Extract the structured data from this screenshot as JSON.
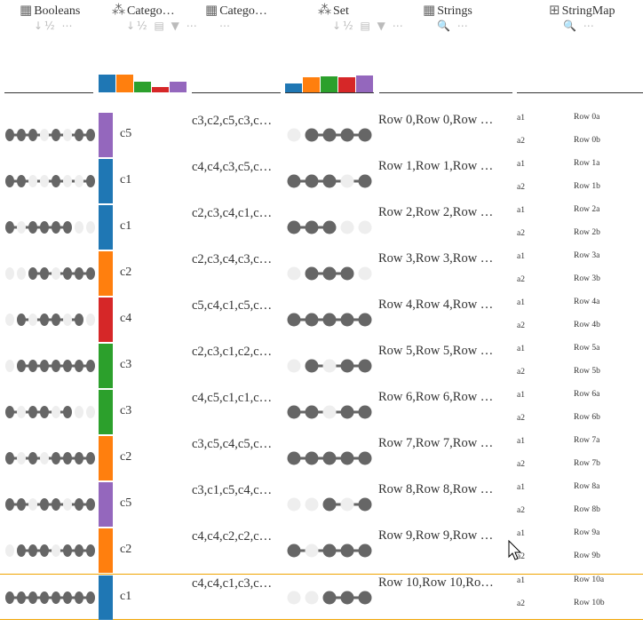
{
  "columns": [
    {
      "title": "Booleans",
      "icon": "grid-icon",
      "tools": "↓½ ⋯"
    },
    {
      "title": "Catego…",
      "icon": "category-icon",
      "tools": "↓½ ▤ ▼ ⋯"
    },
    {
      "title": "Catego…",
      "icon": "grid-icon",
      "tools": "⋯"
    },
    {
      "title": "Set",
      "icon": "category-icon",
      "tools": "↓½ ▤ ▼ ⋯"
    },
    {
      "title": "Strings",
      "icon": "grid-icon",
      "tools": "🔍 ⋯"
    },
    {
      "title": "StringMap",
      "icon": "map-icon",
      "tools": "🔍 ⋯"
    }
  ],
  "colors": {
    "c1": "#1f77b4",
    "c2": "#ff7f0e",
    "c3": "#2ca02c",
    "c4": "#d62728",
    "c5": "#9467bd",
    "dot": "#666666",
    "empty": "#eeeeee",
    "selected": "#f0a400"
  },
  "histogram": [
    {
      "cat": "c1",
      "value": 20
    },
    {
      "cat": "c2",
      "value": 20
    },
    {
      "cat": "c3",
      "value": 12
    },
    {
      "cat": "c4",
      "value": 6
    },
    {
      "cat": "c5",
      "value": 12
    }
  ],
  "set_histogram": [
    {
      "cat": "c1",
      "value": 10
    },
    {
      "cat": "c2",
      "value": 17
    },
    {
      "cat": "c3",
      "value": 18
    },
    {
      "cat": "c4",
      "value": 17
    },
    {
      "cat": "c5",
      "value": 19
    }
  ],
  "rows": [
    {
      "bools": [
        1,
        1,
        1,
        0,
        1,
        0,
        1,
        1
      ],
      "cat": "c5",
      "cats": "c3,c2,c5,c3,c…",
      "set": [
        0,
        1,
        1,
        1,
        1
      ],
      "str": "Row 0,Row 0,Row …",
      "map": [
        {
          "k": "a1",
          "v": "Row 0a"
        },
        {
          "k": "a2",
          "v": "Row 0b"
        }
      ]
    },
    {
      "bools": [
        1,
        1,
        0,
        0,
        1,
        0,
        0,
        1
      ],
      "cat": "c1",
      "cats": "c4,c4,c3,c5,c…",
      "set": [
        1,
        1,
        1,
        0,
        1
      ],
      "str": "Row 1,Row 1,Row …",
      "map": [
        {
          "k": "a1",
          "v": "Row 1a"
        },
        {
          "k": "a2",
          "v": "Row 1b"
        }
      ]
    },
    {
      "bools": [
        1,
        0,
        1,
        1,
        1,
        1,
        0,
        0
      ],
      "cat": "c1",
      "cats": "c2,c3,c4,c1,c…",
      "set": [
        1,
        1,
        1,
        0,
        0
      ],
      "str": "Row 2,Row 2,Row …",
      "map": [
        {
          "k": "a1",
          "v": "Row 2a"
        },
        {
          "k": "a2",
          "v": "Row 2b"
        }
      ]
    },
    {
      "bools": [
        0,
        0,
        1,
        1,
        0,
        1,
        1,
        1
      ],
      "cat": "c2",
      "cats": "c2,c3,c4,c3,c…",
      "set": [
        0,
        1,
        1,
        1,
        0
      ],
      "str": "Row 3,Row 3,Row …",
      "map": [
        {
          "k": "a1",
          "v": "Row 3a"
        },
        {
          "k": "a2",
          "v": "Row 3b"
        }
      ]
    },
    {
      "bools": [
        0,
        1,
        0,
        1,
        1,
        0,
        1,
        0
      ],
      "cat": "c4",
      "cats": "c5,c4,c1,c5,c…",
      "set": [
        1,
        1,
        1,
        1,
        1
      ],
      "str": "Row 4,Row 4,Row …",
      "map": [
        {
          "k": "a1",
          "v": "Row 4a"
        },
        {
          "k": "a2",
          "v": "Row 4b"
        }
      ]
    },
    {
      "bools": [
        0,
        1,
        1,
        1,
        1,
        1,
        1,
        1
      ],
      "cat": "c3",
      "cats": "c2,c3,c1,c2,c…",
      "set": [
        0,
        1,
        0,
        1,
        1
      ],
      "str": "Row 5,Row 5,Row …",
      "map": [
        {
          "k": "a1",
          "v": "Row 5a"
        },
        {
          "k": "a2",
          "v": "Row 5b"
        }
      ]
    },
    {
      "bools": [
        1,
        0,
        1,
        1,
        0,
        1,
        0,
        0
      ],
      "cat": "c3",
      "cats": "c4,c5,c1,c1,c…",
      "set": [
        1,
        1,
        0,
        1,
        1
      ],
      "str": "Row 6,Row 6,Row …",
      "map": [
        {
          "k": "a1",
          "v": "Row 6a"
        },
        {
          "k": "a2",
          "v": "Row 6b"
        }
      ]
    },
    {
      "bools": [
        1,
        0,
        1,
        0,
        1,
        1,
        1,
        1
      ],
      "cat": "c2",
      "cats": "c3,c5,c4,c5,c…",
      "set": [
        1,
        1,
        1,
        1,
        1
      ],
      "str": "Row 7,Row 7,Row …",
      "map": [
        {
          "k": "a1",
          "v": "Row 7a"
        },
        {
          "k": "a2",
          "v": "Row 7b"
        }
      ]
    },
    {
      "bools": [
        1,
        1,
        0,
        1,
        1,
        0,
        1,
        1
      ],
      "cat": "c5",
      "cats": "c3,c1,c5,c4,c…",
      "set": [
        0,
        0,
        1,
        0,
        1
      ],
      "str": "Row 8,Row 8,Row …",
      "map": [
        {
          "k": "a1",
          "v": "Row 8a"
        },
        {
          "k": "a2",
          "v": "Row 8b"
        }
      ]
    },
    {
      "bools": [
        0,
        1,
        1,
        1,
        0,
        1,
        1,
        1
      ],
      "cat": "c2",
      "cats": "c4,c4,c2,c2,c…",
      "set": [
        1,
        0,
        1,
        1,
        1
      ],
      "str": "Row 9,Row 9,Row …",
      "map": [
        {
          "k": "a1",
          "v": "Row 9a"
        },
        {
          "k": "a2",
          "v": "Row 9b"
        }
      ]
    },
    {
      "bools": [
        1,
        1,
        1,
        1,
        1,
        1,
        1,
        1
      ],
      "cat": "c1",
      "cats": "c4,c4,c1,c3,c…",
      "set": [
        0,
        0,
        1,
        1,
        1
      ],
      "str": "Row 10,Row 10,Ro…",
      "map": [
        {
          "k": "a1",
          "v": "Row 10a"
        },
        {
          "k": "a2",
          "v": "Row 10b"
        }
      ],
      "selected": true
    }
  ]
}
